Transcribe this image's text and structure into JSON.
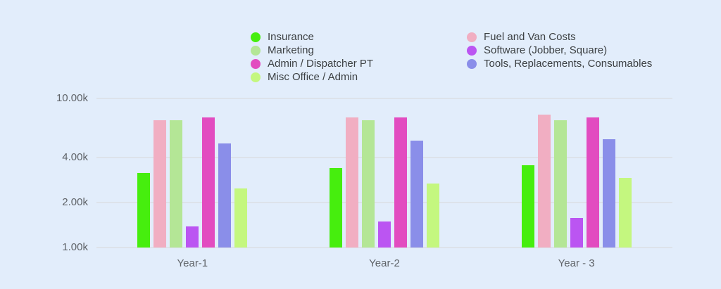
{
  "page": {
    "background": "#e2edfb",
    "axis_text_color": "#5f6368",
    "legend_text_color": "#3c4043",
    "gridline_color": "#dde2ea"
  },
  "chart_data": {
    "type": "bar",
    "title": "",
    "xlabel": "",
    "ylabel": "",
    "y_scale": "log",
    "grid": true,
    "legend_position": "top",
    "ylim": [
      1000,
      10000
    ],
    "y_ticks": [
      {
        "label": "10.00k",
        "value": 10000
      },
      {
        "label": "4.00k",
        "value": 4000
      },
      {
        "label": "2.00k",
        "value": 2000
      },
      {
        "label": "1.00k",
        "value": 1000
      }
    ],
    "categories": [
      "Year-1",
      "Year-2",
      "Year - 3"
    ],
    "series": [
      {
        "name": "Insurance",
        "color": "#46ee0e",
        "values": [
          3160,
          3410,
          3550
        ]
      },
      {
        "name": "Fuel and Van Costs",
        "color": "#f1aec2",
        "values": [
          7140,
          7430,
          7820
        ]
      },
      {
        "name": "Marketing",
        "color": "#b4e696",
        "values": [
          7140,
          7140,
          7160
        ]
      },
      {
        "name": "Software (Jobber, Square)",
        "color": "#bb55f2",
        "values": [
          1390,
          1490,
          1580
        ]
      },
      {
        "name": "Admin / Dispatcher PT",
        "color": "#e24cc0",
        "values": [
          7480,
          7430,
          7480
        ]
      },
      {
        "name": "Tools, Replacements, Consumables",
        "color": "#8a8ee9",
        "values": [
          4990,
          5210,
          5340
        ]
      },
      {
        "name": "Misc Office / Admin",
        "color": "#c4f77f",
        "values": [
          2480,
          2700,
          2920
        ]
      }
    ]
  }
}
